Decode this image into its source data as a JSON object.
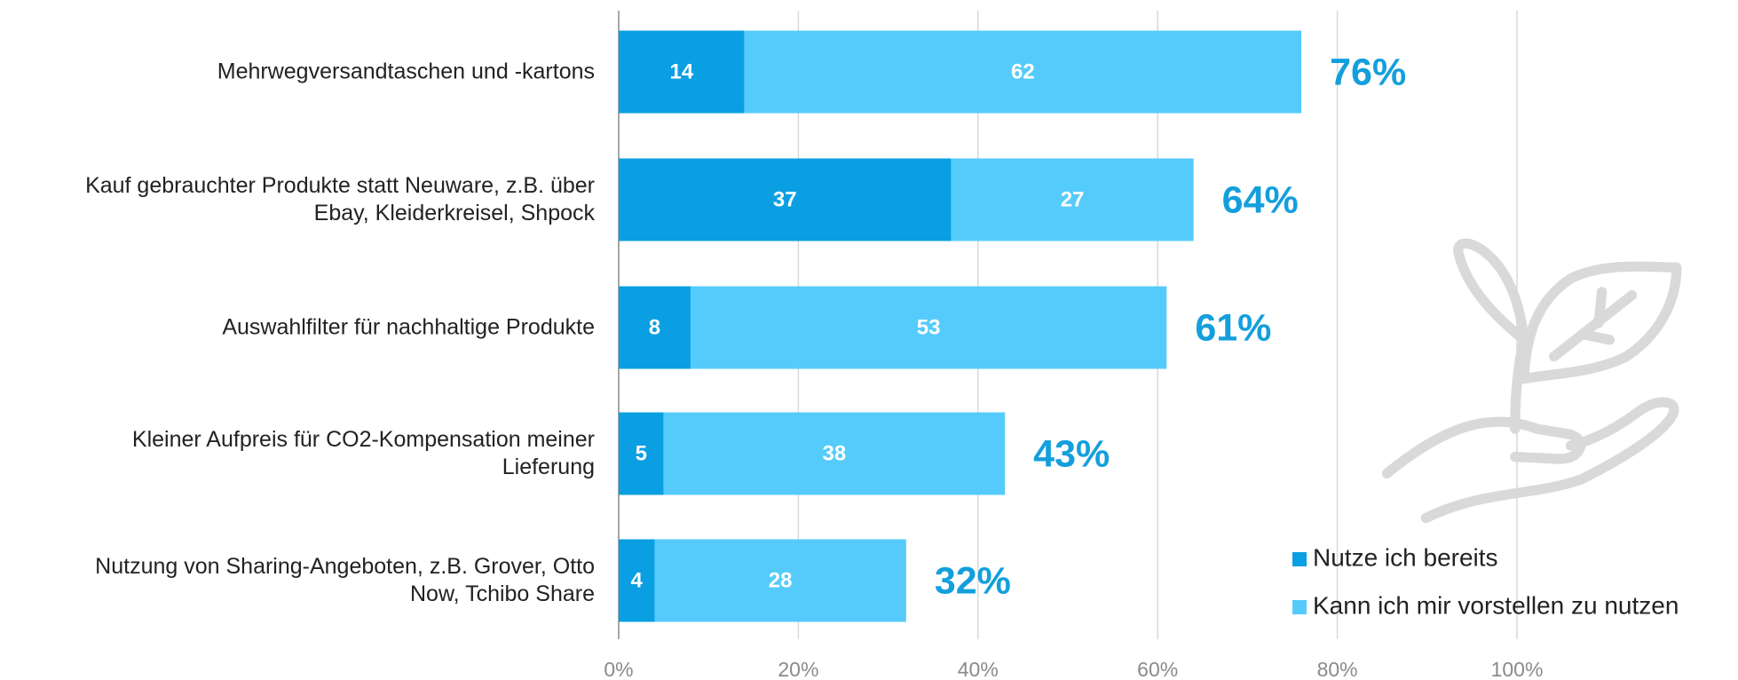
{
  "chart_data": {
    "type": "stacked-barh",
    "categories": [
      "Mehrwegversandtaschen und -kartons",
      "Kauf gebrauchter Produkte statt Neuware, z.B. über\nEbay, Kleiderkreisel, Shpock",
      "Auswahlfilter für nachhaltige Produkte",
      "Kleiner Aufpreis für CO2-Kompensation meiner\nLieferung",
      "Nutzung von Sharing-Angeboten, z.B. Grover, Otto\nNow, Tchibo Share"
    ],
    "series": [
      {
        "name": "Nutze ich bereits",
        "color": "#0a9fe2",
        "values": [
          14,
          37,
          8,
          5,
          4
        ]
      },
      {
        "name": "Kann ich mir vorstellen zu nutzen",
        "color": "#55cbfb",
        "values": [
          62,
          27,
          53,
          38,
          28
        ]
      }
    ],
    "totals": [
      76,
      64,
      61,
      43,
      32
    ],
    "total_labels": [
      "76%",
      "64%",
      "61%",
      "43%",
      "32%"
    ],
    "total_color": "#139fdc",
    "xlim": [
      0,
      100
    ],
    "xticks": [
      {
        "value": 0,
        "label": "0%"
      },
      {
        "value": 20,
        "label": "20%"
      },
      {
        "value": 40,
        "label": "40%"
      },
      {
        "value": 60,
        "label": "60%"
      },
      {
        "value": 80,
        "label": "80%"
      },
      {
        "value": 100,
        "label": "100%"
      }
    ],
    "grid": true,
    "legend": "lower right"
  }
}
